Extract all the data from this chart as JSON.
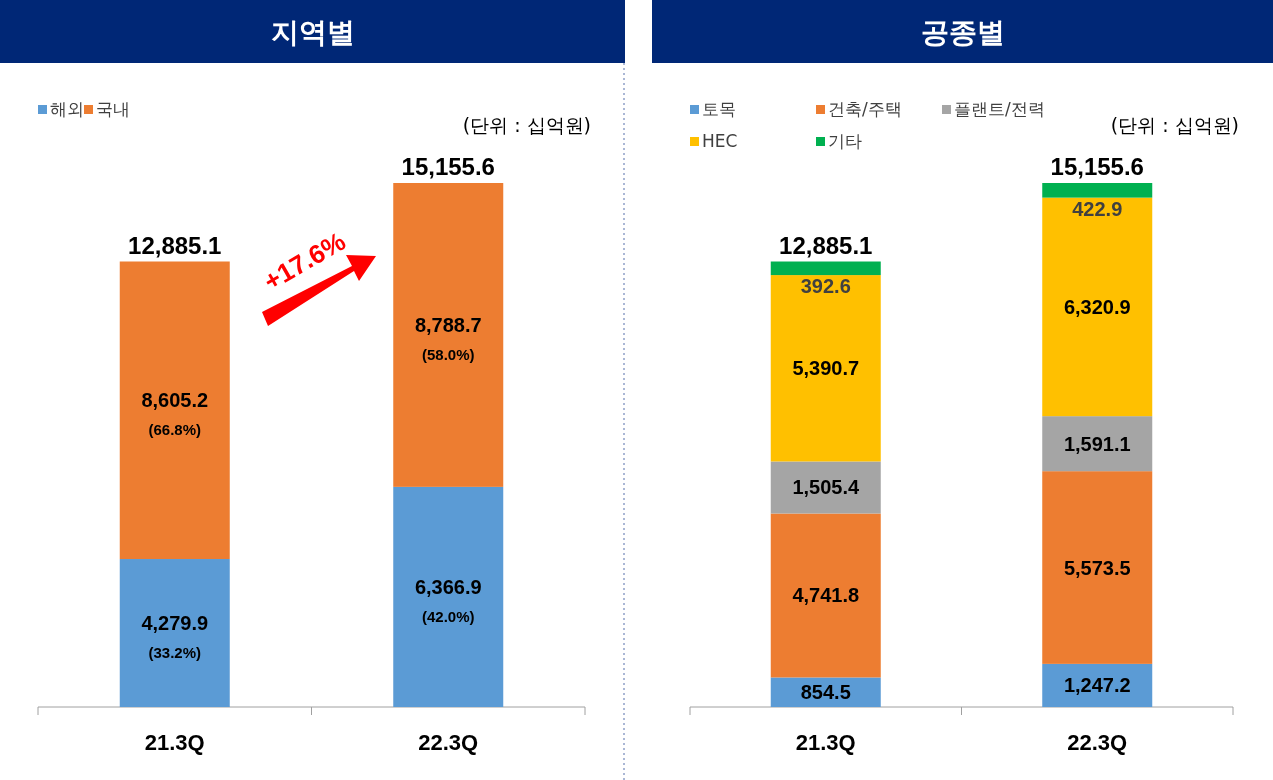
{
  "chart_data": [
    {
      "type": "bar",
      "title": "지역별",
      "stacked": true,
      "categories": [
        "21.3Q",
        "22.3Q"
      ],
      "legend": "top left",
      "series": [
        {
          "name": "해외",
          "color": "#5b9bd5",
          "values": [
            4279.9,
            6366.9
          ],
          "value_labels": [
            "4,279.9 (33.2%)",
            "6,366.9 (42.0%)"
          ]
        },
        {
          "name": "국내",
          "color": "#ed7d31",
          "values": [
            8605.2,
            8788.7
          ],
          "value_labels": [
            "8,605.2 (66.8%)",
            "8,788.7 (58.0%)"
          ]
        }
      ],
      "totals": [
        "12,885.1",
        "15,155.6"
      ],
      "annotations": [
        "(단위 : 십억원)",
        "+17.6%"
      ]
    },
    {
      "type": "bar",
      "title": "공종별",
      "stacked": true,
      "categories": [
        "21.3Q",
        "22.3Q"
      ],
      "legend": "top left",
      "series": [
        {
          "name": "토목",
          "color": "#5b9bd5",
          "values": [
            854.5,
            1247.2
          ],
          "value_labels": [
            "854.5",
            "1,247.2"
          ]
        },
        {
          "name": "건축/주택",
          "color": "#ed7d31",
          "values": [
            4741.8,
            5573.5
          ],
          "value_labels": [
            "4,741.8",
            "5,573.5"
          ]
        },
        {
          "name": "플랜트/전력",
          "color": "#a5a5a5",
          "values": [
            1505.4,
            1591.1
          ],
          "value_labels": [
            "1,505.4",
            "1,591.1"
          ]
        },
        {
          "name": "HEC",
          "color": "#ffc000",
          "values": [
            5390.7,
            6320.9
          ],
          "value_labels": [
            "5,390.7",
            "6,320.9"
          ]
        },
        {
          "name": "기타",
          "color": "#00b050",
          "values": [
            392.6,
            422.9
          ],
          "value_labels": [
            "392.6",
            "422.9"
          ]
        }
      ],
      "totals": [
        "12,885.1",
        "15,155.6"
      ],
      "annotations": [
        "(단위 : 십억원)"
      ]
    }
  ]
}
